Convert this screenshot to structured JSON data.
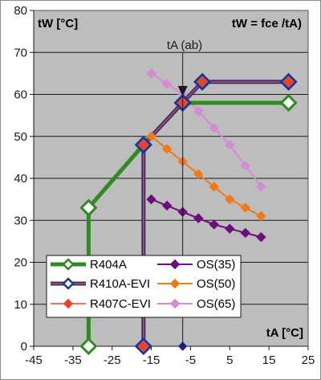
{
  "chart_data": {
    "type": "line",
    "title_left": "tW [°C]",
    "title_right": "tW = fce /tA)",
    "xlabel": "tA [°C]",
    "annotation": "tA (ab)",
    "annotation_x": -7,
    "xlim": [
      -45,
      25
    ],
    "ylim": [
      0,
      80
    ],
    "x_ticks": [
      -45,
      -35,
      -25,
      -15,
      -5,
      5,
      15,
      25
    ],
    "y_ticks": [
      0,
      10,
      20,
      30,
      40,
      50,
      60,
      70,
      80
    ],
    "grid": "horizontal",
    "legend_position": "bottom-left",
    "series": [
      {
        "name": "R404A",
        "color": "#2e8b1f",
        "marker": "open-diamond",
        "lineWidth": 5,
        "x": [
          -31,
          -31,
          -31,
          -17,
          -7,
          20
        ],
        "y": [
          0,
          33,
          33,
          48,
          58,
          58
        ]
      },
      {
        "name": "R410A-EVI",
        "color": "#1f3590",
        "marker": "open-diamond",
        "lineWidth": 5,
        "x": [
          -17,
          -17,
          -7,
          -2,
          20
        ],
        "y": [
          0,
          48,
          58,
          63,
          63
        ]
      },
      {
        "name": "R407C-EVI",
        "color": "#f04020",
        "marker": "diamond",
        "lineWidth": 1.5,
        "x": [
          -17,
          -17,
          -7,
          -2,
          20
        ],
        "y": [
          0,
          48,
          58,
          63,
          63
        ]
      },
      {
        "name": "OS(35)",
        "color": "#6b0f7a",
        "marker": "diamond",
        "lineWidth": 2,
        "x": [
          -15,
          -11,
          -7,
          -3,
          1,
          5,
          9,
          13
        ],
        "y": [
          35,
          33.5,
          32,
          30.5,
          29,
          28,
          27,
          26
        ]
      },
      {
        "name": "OS(50)",
        "color": "#f07a1a",
        "marker": "diamond",
        "lineWidth": 2,
        "x": [
          -15,
          -11,
          -7,
          -3,
          1,
          5,
          9,
          13
        ],
        "y": [
          50,
          47,
          44,
          41,
          38,
          35,
          33,
          31
        ]
      },
      {
        "name": "OS(65)",
        "color": "#d58ad5",
        "marker": "diamond",
        "lineWidth": 2,
        "x": [
          -15,
          -11,
          -7,
          -3,
          1,
          5,
          9,
          13
        ],
        "y": [
          65,
          62.5,
          60,
          56,
          52,
          48,
          43,
          38
        ]
      }
    ],
    "extra_markers": [
      {
        "x": -7,
        "y": 0,
        "color": "#1f1f8f"
      }
    ],
    "legend": [
      "R404A",
      "R410A-EVI",
      "R407C-EVI",
      "OS(35)",
      "OS(50)",
      "OS(65)"
    ]
  }
}
